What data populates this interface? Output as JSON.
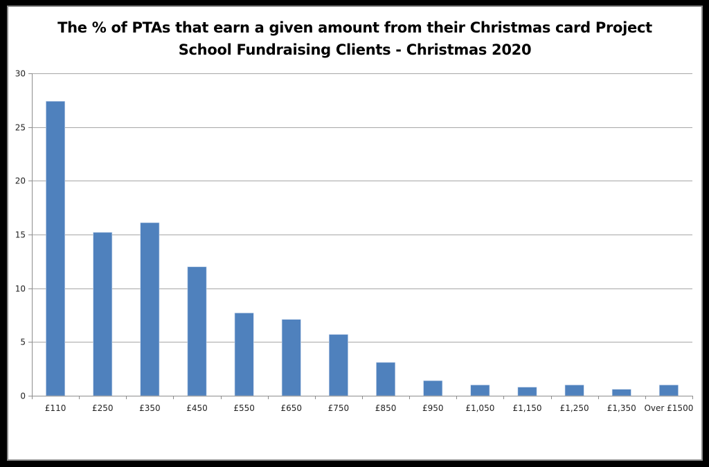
{
  "chart_data": {
    "type": "bar",
    "title": "The % of PTAs that earn a given amount from their Christmas card Project",
    "subtitle": "School Fundraising Clients - Christmas 2020",
    "xlabel": "",
    "ylabel": "",
    "categories": [
      "£110",
      "£250",
      "£350",
      "£450",
      "£550",
      "£650",
      "£750",
      "£850",
      "£950",
      "£1,050",
      "£1,150",
      "£1,250",
      "£1,350",
      "Over £1500"
    ],
    "values": [
      27.4,
      15.2,
      16.1,
      12.0,
      7.7,
      7.1,
      5.7,
      3.1,
      1.4,
      1.0,
      0.8,
      1.0,
      0.6,
      1.0
    ],
    "ylim": [
      0,
      30
    ],
    "yticks": [
      0,
      5,
      10,
      15,
      20,
      25,
      30
    ],
    "grid": true,
    "legend": null,
    "bar_color": "#4f81bd"
  },
  "colors": {
    "bar": "#4f81bd",
    "bar_edge": "#c8d7ec",
    "grid": "#a6a6a6",
    "axis": "#8c8c8c"
  }
}
